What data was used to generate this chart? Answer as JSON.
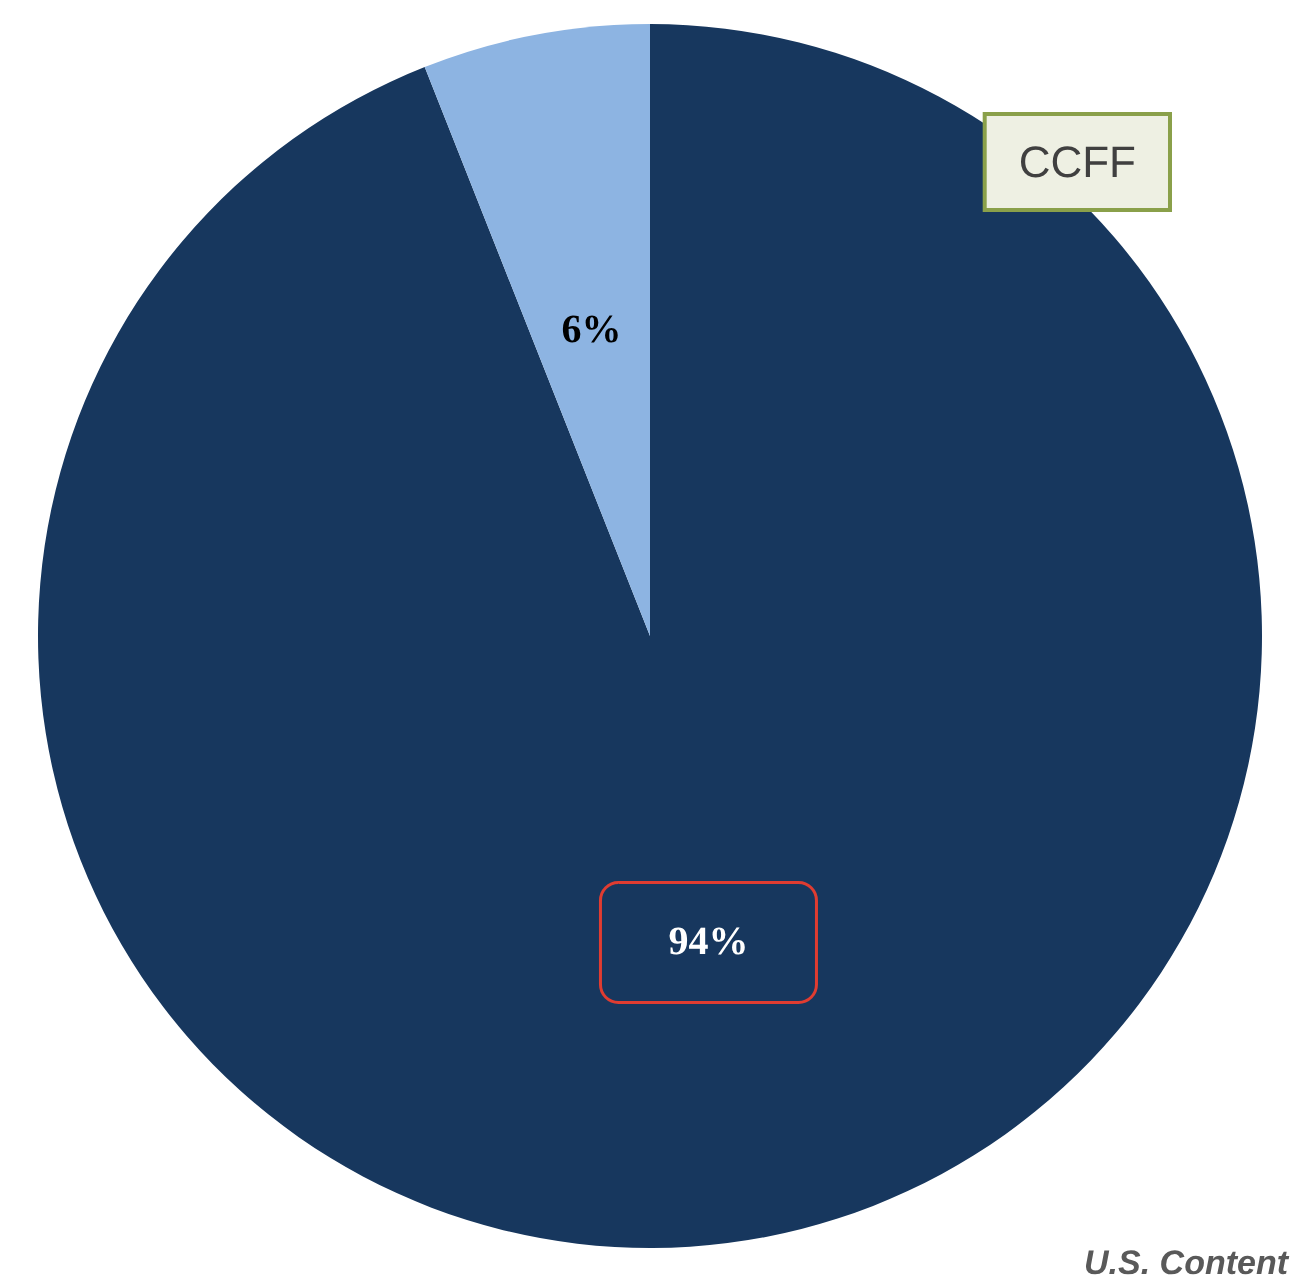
{
  "chart_data": {
    "type": "pie",
    "categories": [
      null,
      null
    ],
    "values": [
      94,
      6
    ],
    "colors": [
      "#17375e",
      "#8db4e2"
    ],
    "value_labels": [
      "94%",
      "6%"
    ],
    "annotations": [
      "CCFF",
      "U.S. Content"
    ]
  }
}
